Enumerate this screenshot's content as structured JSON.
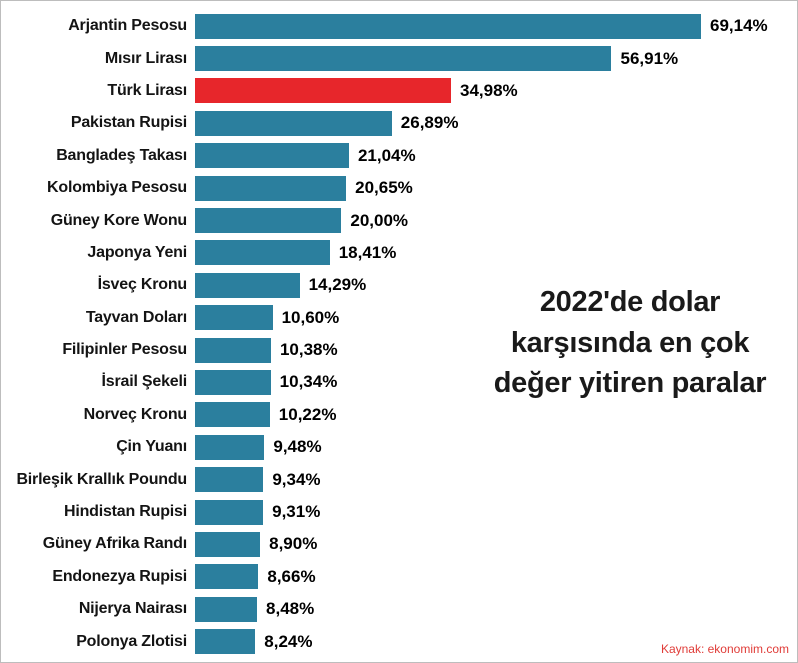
{
  "chart_data": {
    "type": "bar",
    "orientation": "horizontal",
    "title": "2022'de dolar karşısında en çok değer yitiren paralar",
    "categories": [
      "Arjantin Pesosu",
      "Mısır Lirası",
      "Türk Lirası",
      "Pakistan Rupisi",
      "Bangladeş Takası",
      "Kolombiya Pesosu",
      "Güney Kore Wonu",
      "Japonya Yeni",
      "İsveç Kronu",
      "Tayvan Doları",
      "Filipinler Pesosu",
      "İsrail Şekeli",
      "Norveç Kronu",
      "Çin Yuanı",
      "Birleşik Krallık Poundu",
      "Hindistan Rupisi",
      "Güney Afrika Randı",
      "Endonezya Rupisi",
      "Nijerya Nairası",
      "Polonya Zlotisi"
    ],
    "values": [
      69.14,
      56.91,
      34.98,
      26.89,
      21.04,
      20.65,
      20.0,
      18.41,
      14.29,
      10.6,
      10.38,
      10.34,
      10.22,
      9.48,
      9.34,
      9.31,
      8.9,
      8.66,
      8.48,
      8.24
    ],
    "value_labels": [
      "69,14%",
      "56,91%",
      "34,98%",
      "26,89%",
      "21,04%",
      "20,65%",
      "20,00%",
      "18,41%",
      "14,29%",
      "10,60%",
      "10,38%",
      "10,34%",
      "10,22%",
      "9,48%",
      "9,34%",
      "9,31%",
      "8,90%",
      "8,66%",
      "8,48%",
      "8,24%"
    ],
    "highlight_index": 2,
    "bar_color": "#2b7f9e",
    "highlight_color": "#e7262b",
    "xlim": [
      0,
      75
    ],
    "grid": false,
    "legend": "none"
  },
  "annotation": {
    "lines": [
      "2022'de dolar",
      "karşısında en çok",
      "değer yitiren paralar"
    ]
  },
  "source": {
    "label": "Kaynak: ekonomim.com"
  }
}
